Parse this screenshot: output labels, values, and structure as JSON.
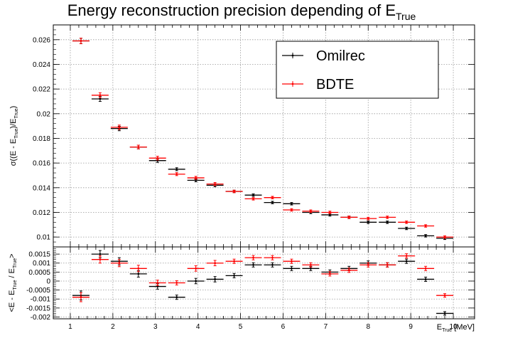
{
  "chart_data": [
    {
      "type": "scatter",
      "title": "Energy reconstruction precision depending of E",
      "title_sub": "True",
      "ylabel_parts": [
        "σ((E - E",
        "True",
        ")/E",
        "True",
        ")"
      ],
      "xlim": [
        0.6,
        10.5
      ],
      "ylim": [
        0.0092,
        0.0272
      ],
      "yticks": [
        0.01,
        0.012,
        0.014,
        0.016,
        0.018,
        0.02,
        0.022,
        0.024,
        0.026
      ],
      "ytick_labels": [
        "0.01",
        "0.012",
        "0.014",
        "0.016",
        "0.018",
        "0.02",
        "0.022",
        "0.024",
        "0.026"
      ],
      "grid": true,
      "legend_position": "top-right",
      "series": [
        {
          "name": "Omilrec",
          "color": "#000000",
          "x": [
            1.25,
            1.7,
            2.15,
            2.6,
            3.05,
            3.5,
            3.95,
            4.4,
            4.85,
            5.3,
            5.75,
            6.2,
            6.65,
            7.1,
            7.55,
            8.0,
            8.45,
            8.9,
            9.35,
            9.8
          ],
          "y": [
            0.0259,
            0.0212,
            0.0188,
            0.0173,
            0.0162,
            0.0155,
            0.0146,
            0.0142,
            0.0137,
            0.0134,
            0.0128,
            0.0127,
            0.012,
            0.0118,
            0.0116,
            0.0112,
            0.0112,
            0.0107,
            0.0101,
            0.0099
          ],
          "yerr": [
            0.00022,
            0.0002,
            0.00018,
            0.00015,
            0.00015,
            0.00012,
            0.00012,
            0.00012,
            0.0001,
            0.0001,
            0.0001,
            0.0001,
            0.0001,
            0.0001,
            0.0001,
            0.0001,
            0.0001,
            0.0001,
            0.0001,
            0.0001
          ],
          "xerr": 0.2
        },
        {
          "name": "BDTE",
          "color": "#ff0000",
          "x": [
            1.25,
            1.7,
            2.15,
            2.6,
            3.05,
            3.5,
            3.95,
            4.4,
            4.85,
            5.3,
            5.75,
            6.2,
            6.65,
            7.1,
            7.55,
            8.0,
            8.45,
            8.9,
            9.35,
            9.8
          ],
          "y": [
            0.0259,
            0.0215,
            0.0189,
            0.0173,
            0.0164,
            0.0151,
            0.0148,
            0.0143,
            0.0137,
            0.0131,
            0.0132,
            0.0122,
            0.0121,
            0.012,
            0.0116,
            0.0115,
            0.0116,
            0.0112,
            0.0109,
            0.01
          ],
          "yerr": [
            0.00022,
            0.0002,
            0.00018,
            0.00015,
            0.00015,
            0.00012,
            0.00012,
            0.00012,
            0.0001,
            0.0001,
            0.0001,
            0.0001,
            0.0001,
            0.0001,
            0.0001,
            0.0001,
            0.0001,
            0.0001,
            0.0001,
            0.0001
          ],
          "xerr": 0.2
        }
      ]
    },
    {
      "type": "scatter",
      "ylabel_parts": [
        "<E - E",
        "True",
        " / E",
        "True",
        ">"
      ],
      "xlabel": "E",
      "xlabel_sub": "True",
      "xlabel_unit": " [MeV]",
      "xlim": [
        0.6,
        10.5
      ],
      "ylim": [
        -0.0021,
        0.0019
      ],
      "xticks": [
        1,
        2,
        3,
        4,
        5,
        6,
        7,
        8,
        9,
        10
      ],
      "xtick_labels": [
        "1",
        "2",
        "3",
        "4",
        "5",
        "6",
        "7",
        "8",
        "9",
        "10"
      ],
      "yticks": [
        -0.002,
        -0.0015,
        -0.001,
        -0.0005,
        0,
        0.0005,
        0.001,
        0.0015
      ],
      "ytick_labels": [
        "-0.002",
        "-0.0015",
        "-0.001",
        "-0.0005",
        "0",
        "0.0005",
        "0.001",
        "0.0015"
      ],
      "grid": true,
      "series": [
        {
          "name": "Omilrec",
          "color": "#000000",
          "x": [
            1.25,
            1.7,
            2.15,
            2.6,
            3.05,
            3.5,
            3.95,
            4.4,
            4.85,
            5.3,
            5.75,
            6.2,
            6.65,
            7.1,
            7.55,
            8.0,
            8.45,
            8.9,
            9.35,
            9.8
          ],
          "y": [
            -0.0008,
            0.0015,
            0.0011,
            0.0004,
            -0.0003,
            -0.0009,
            0.0,
            0.0001,
            0.0003,
            0.0009,
            0.0009,
            0.0007,
            0.0007,
            0.0005,
            0.0007,
            0.001,
            0.0009,
            0.0011,
            0.0001,
            -0.0018
          ],
          "yerr": [
            0.00025,
            0.0002,
            0.0002,
            0.00018,
            0.00015,
            0.00012,
            0.00015,
            0.00015,
            0.00012,
            0.00012,
            0.00012,
            0.00012,
            0.00012,
            0.00012,
            0.00012,
            0.00012,
            0.00012,
            0.00012,
            0.00012,
            0.0001
          ],
          "xerr": 0.2
        },
        {
          "name": "BDTE",
          "color": "#ff0000",
          "x": [
            1.25,
            1.7,
            2.15,
            2.6,
            3.05,
            3.5,
            3.95,
            4.4,
            4.85,
            5.3,
            5.75,
            6.2,
            6.65,
            7.1,
            7.55,
            8.0,
            8.45,
            8.9,
            9.35,
            9.8
          ],
          "y": [
            -0.0009,
            0.0012,
            0.001,
            0.0007,
            -0.0001,
            -0.0001,
            0.0007,
            0.001,
            0.0011,
            0.0013,
            0.0013,
            0.0011,
            0.0009,
            0.0004,
            0.0006,
            0.0009,
            0.0009,
            0.0014,
            0.0007,
            -0.0008
          ],
          "yerr": [
            0.00025,
            0.0002,
            0.0002,
            0.00018,
            0.00015,
            0.00012,
            0.00015,
            0.00015,
            0.00012,
            0.00012,
            0.00012,
            0.00012,
            0.00012,
            0.00012,
            0.00012,
            0.00012,
            0.00012,
            0.00012,
            0.00012,
            0.0001
          ],
          "xerr": 0.2
        }
      ]
    }
  ]
}
